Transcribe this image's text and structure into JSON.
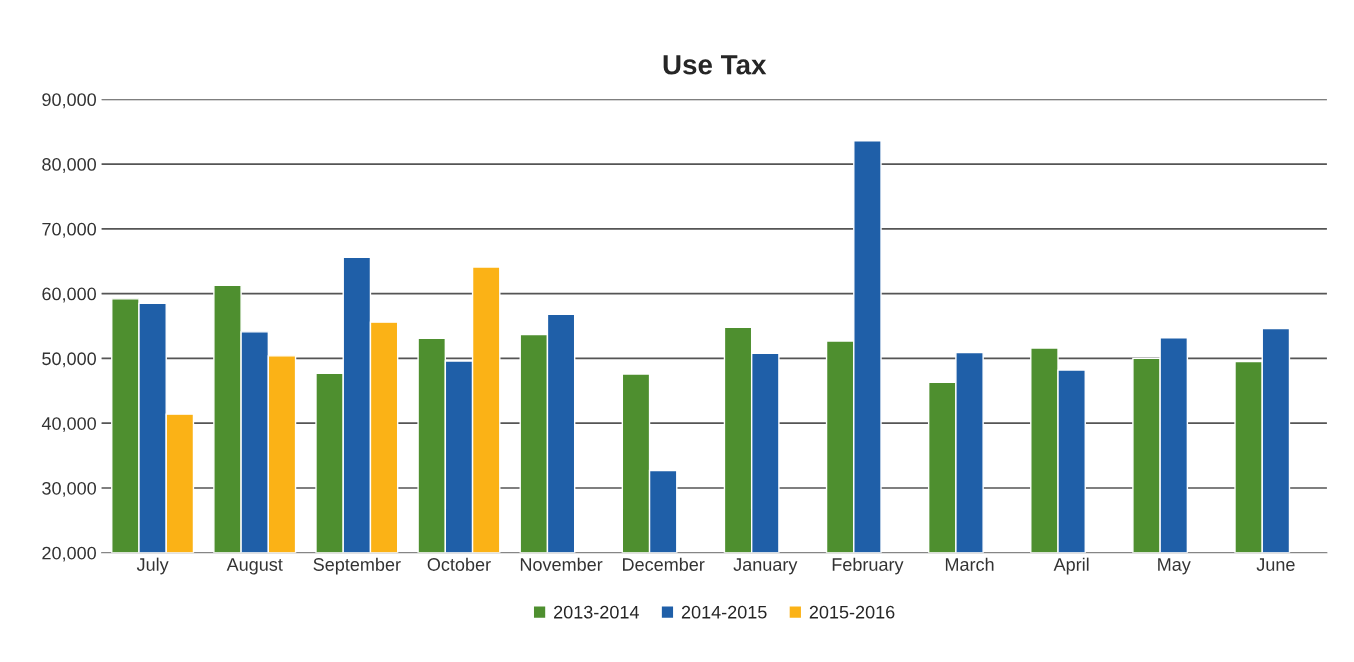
{
  "chart_data": {
    "type": "bar",
    "title": "Use Tax",
    "categories": [
      "July",
      "August",
      "September",
      "October",
      "November",
      "December",
      "January",
      "February",
      "March",
      "April",
      "May",
      "June"
    ],
    "series": [
      {
        "name": "2013-2014",
        "color": "#4e8f2f",
        "values": [
          59200,
          61300,
          47700,
          53100,
          53700,
          47600,
          54800,
          52700,
          46300,
          51600,
          50000,
          49500
        ]
      },
      {
        "name": "2014-2015",
        "color": "#1f5fa8",
        "values": [
          58500,
          54100,
          65600,
          49600,
          56800,
          32700,
          50800,
          83600,
          50900,
          48200,
          53200,
          54600
        ]
      },
      {
        "name": "2015-2016",
        "color": "#fbb216",
        "values": [
          41400,
          50400,
          55600,
          64100,
          null,
          null,
          null,
          null,
          null,
          null,
          null,
          null
        ]
      }
    ],
    "ylim": [
      20000,
      90000
    ],
    "yticks": [
      {
        "value": 20000,
        "label": "20,000"
      },
      {
        "value": 30000,
        "label": "30,000"
      },
      {
        "value": 40000,
        "label": "40,000"
      },
      {
        "value": 50000,
        "label": "50,000"
      },
      {
        "value": 60000,
        "label": "60,000"
      },
      {
        "value": 70000,
        "label": "70,000"
      },
      {
        "value": 80000,
        "label": "80,000"
      },
      {
        "value": 90000,
        "label": "90,000"
      }
    ],
    "grid": "y",
    "legend": "bottom"
  }
}
